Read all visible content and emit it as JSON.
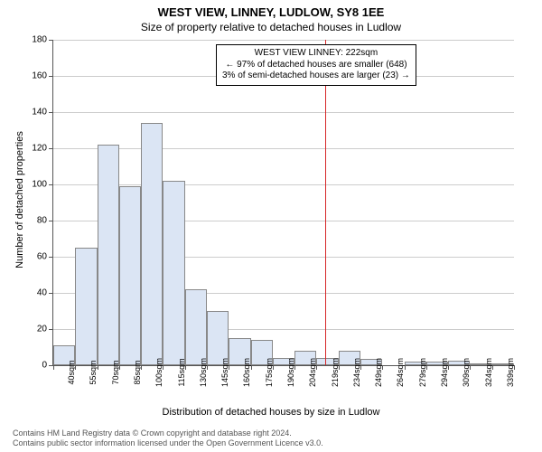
{
  "chart": {
    "type": "histogram",
    "title1": "WEST VIEW, LINNEY, LUDLOW, SY8 1EE",
    "title2": "Size of property relative to detached houses in Ludlow",
    "ylabel": "Number of detached properties",
    "xlabel": "Distribution of detached houses by size in Ludlow",
    "ylim": [
      0,
      180
    ],
    "ytick_step": 20,
    "categories": [
      "40sqm",
      "55sqm",
      "70sqm",
      "85sqm",
      "100sqm",
      "115sqm",
      "130sqm",
      "145sqm",
      "160sqm",
      "175sqm",
      "190sqm",
      "204sqm",
      "219sqm",
      "234sqm",
      "249sqm",
      "264sqm",
      "279sqm",
      "294sqm",
      "309sqm",
      "324sqm",
      "339sqm"
    ],
    "values": [
      11,
      65,
      122,
      99,
      134,
      102,
      42,
      30,
      15,
      14,
      4,
      8,
      4,
      8,
      3.5,
      0,
      2,
      2,
      2.5,
      0.5,
      0.5
    ],
    "bar_fill": "#dbe5f4",
    "bar_border": "#888888",
    "grid_color": "#cccccc",
    "marker": {
      "color": "#d62728",
      "x_category_index": 12.4,
      "lines": [
        "WEST VIEW LINNEY: 222sqm",
        "← 97% of detached houses are smaller (648)",
        "3% of semi-detached houses are larger (23) →"
      ]
    },
    "footer": [
      "Contains HM Land Registry data © Crown copyright and database right 2024.",
      "Contains public sector information licensed under the Open Government Licence v3.0."
    ]
  }
}
